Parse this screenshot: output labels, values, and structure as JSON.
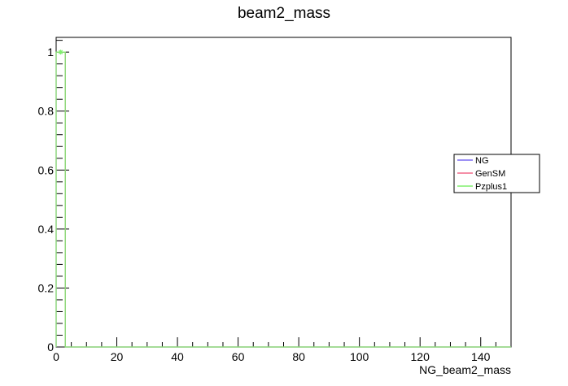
{
  "chart_data": {
    "type": "line",
    "title": "beam2_mass",
    "xlabel": "NG_beam2_mass",
    "ylabel": "",
    "xlim": [
      0,
      150
    ],
    "ylim": [
      0,
      1.05
    ],
    "x_ticks": [
      0,
      20,
      40,
      60,
      80,
      100,
      120,
      140
    ],
    "x_tick_labels": [
      "0",
      "20",
      "40",
      "60",
      "80",
      "100",
      "120",
      "140"
    ],
    "y_ticks": [
      0,
      0.2,
      0.4,
      0.6,
      0.8,
      1
    ],
    "y_tick_labels": [
      "0",
      "0.2",
      "0.4",
      "0.6",
      "0.8",
      "1"
    ],
    "grid": false,
    "legend_position": "right",
    "bin_edges": [
      0,
      3
    ],
    "series": [
      {
        "name": "NG",
        "color": "#7b6cf2",
        "values": [
          1
        ]
      },
      {
        "name": "GenSM",
        "color": "#f26a8a",
        "values": [
          1
        ]
      },
      {
        "name": "Pzplus1",
        "color": "#80ef6e",
        "values": [
          1
        ],
        "marker_x": 1.5,
        "marker_y": 1
      }
    ]
  }
}
